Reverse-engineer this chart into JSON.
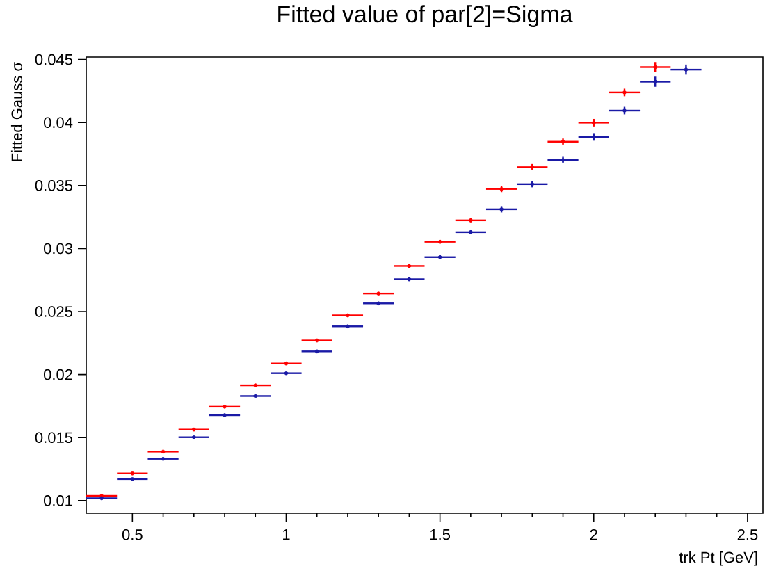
{
  "chart_data": {
    "type": "scatter",
    "title": "Fitted value of par[2]=Sigma",
    "xlabel": "trk Pt  [GeV]",
    "ylabel": "Fitted Gauss σ",
    "xlim": [
      0.35,
      2.55
    ],
    "ylim": [
      0.009,
      0.0452
    ],
    "xticks": [
      0.5,
      1,
      1.5,
      2,
      2.5
    ],
    "yticks": [
      0.01,
      0.015,
      0.02,
      0.025,
      0.03,
      0.035,
      0.04,
      0.045
    ],
    "marker": "circle",
    "series": [
      {
        "color": "#ff0000",
        "x": [
          0.4,
          0.5,
          0.6,
          0.7,
          0.8,
          0.9,
          1.0,
          1.1,
          1.2,
          1.3,
          1.4,
          1.5,
          1.6,
          1.7,
          1.8,
          1.9,
          2.0,
          2.1,
          2.2
        ],
        "values": [
          0.01038,
          0.01216,
          0.01389,
          0.01564,
          0.01745,
          0.01915,
          0.02088,
          0.02271,
          0.0247,
          0.02643,
          0.02862,
          0.03054,
          0.03224,
          0.03473,
          0.03646,
          0.03848,
          0.03999,
          0.04239,
          0.0444
        ],
        "errors": [
          null,
          null,
          null,
          null,
          null,
          null,
          null,
          null,
          null,
          null,
          0.00015,
          0.00015,
          0.00015,
          0.00025,
          0.00025,
          0.00025,
          0.0003,
          0.0003,
          0.0004
        ],
        "xerrors": [
          0.05,
          0.05,
          0.05,
          0.05,
          0.05,
          0.05,
          0.05,
          0.05,
          0.05,
          0.05,
          0.05,
          0.05,
          0.05,
          0.05,
          0.05,
          0.05,
          0.05,
          0.05,
          0.05
        ]
      },
      {
        "color": "#1a1aa6",
        "x": [
          0.4,
          0.5,
          0.6,
          0.7,
          0.8,
          0.9,
          1.0,
          1.1,
          1.2,
          1.3,
          1.4,
          1.5,
          1.6,
          1.7,
          1.8,
          1.9,
          2.0,
          2.1,
          2.2,
          2.3
        ],
        "values": [
          0.01019,
          0.01171,
          0.01332,
          0.01503,
          0.01678,
          0.0183,
          0.02011,
          0.02184,
          0.02383,
          0.02565,
          0.02757,
          0.02932,
          0.0313,
          0.03312,
          0.03511,
          0.03703,
          0.03886,
          0.04095,
          0.04324,
          0.0442
        ],
        "errors": [
          null,
          null,
          null,
          null,
          null,
          null,
          null,
          null,
          null,
          null,
          0.00015,
          0.00015,
          0.00015,
          0.00025,
          0.00025,
          0.00025,
          0.0003,
          0.0003,
          0.0004,
          0.0004
        ],
        "xerrors": [
          0.05,
          0.05,
          0.05,
          0.05,
          0.05,
          0.05,
          0.05,
          0.05,
          0.05,
          0.05,
          0.05,
          0.05,
          0.05,
          0.05,
          0.05,
          0.05,
          0.05,
          0.05,
          0.05,
          0.05
        ]
      }
    ]
  }
}
